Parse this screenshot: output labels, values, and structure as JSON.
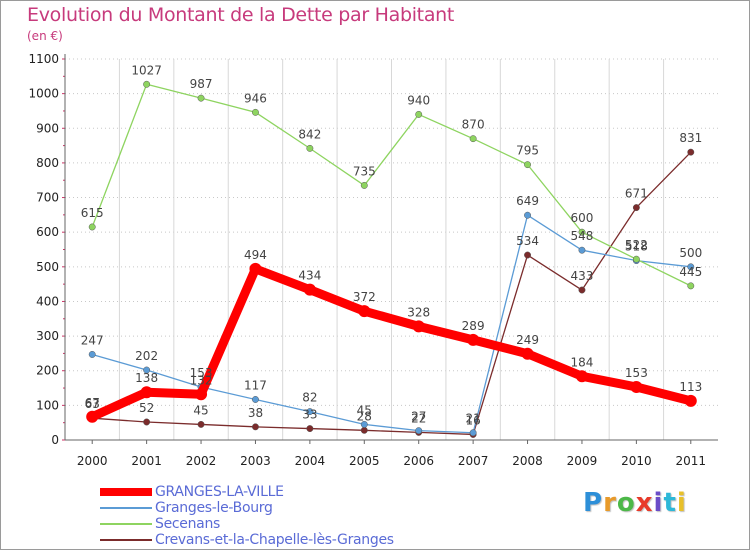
{
  "title": "Evolution du Montant de la Dette par Habitant",
  "unit": "(en €)",
  "logo": {
    "letters": [
      "P",
      "r",
      "o",
      "x",
      "i",
      "t",
      "i"
    ],
    "colors": [
      "#2d8fd8",
      "#e89a2a",
      "#4cb848",
      "#e83a2a",
      "#6a4cc8",
      "#2db8d8",
      "#e8c02a"
    ]
  },
  "chart_data": {
    "type": "line",
    "title": "Evolution du Montant de la Dette par Habitant",
    "ylabel": "(en €)",
    "xlabel": "",
    "x": [
      "2000",
      "2001",
      "2002",
      "2003",
      "2004",
      "2005",
      "2006",
      "2007",
      "2008",
      "2009",
      "2010",
      "2011"
    ],
    "ylim": [
      0,
      1100
    ],
    "yticks": [
      "0",
      "100",
      "200",
      "300",
      "400",
      "500",
      "600",
      "700",
      "800",
      "900",
      "1000",
      "1100"
    ],
    "grid": true,
    "legend_position": "bottom-left",
    "series": [
      {
        "name": "GRANGES-LA-VILLE",
        "color": "#ff0000",
        "values": [
          67,
          138,
          132,
          494,
          434,
          372,
          328,
          289,
          249,
          184,
          153,
          113
        ],
        "labels": [
          "67",
          "138",
          "132",
          "494",
          "434",
          "372",
          "328",
          "289",
          "249",
          "184",
          "153",
          "113"
        ]
      },
      {
        "name": "Granges-le-Bourg",
        "color": "#5b9bd5",
        "values": [
          247,
          202,
          153,
          117,
          82,
          45,
          27,
          21,
          649,
          548,
          518,
          500
        ],
        "labels": [
          "247",
          "202",
          "153",
          "117",
          "82",
          "45",
          "27",
          "21",
          "649",
          "548",
          "518",
          "500"
        ]
      },
      {
        "name": "Secenans",
        "color": "#8ed460",
        "values": [
          615,
          1027,
          987,
          946,
          842,
          735,
          940,
          870,
          795,
          600,
          522,
          445
        ],
        "labels": [
          "615",
          "1027",
          "987",
          "946",
          "842",
          "735",
          "940",
          "870",
          "795",
          "600",
          "522",
          "445"
        ]
      },
      {
        "name": "Crevans-et-la-Chapelle-lès-Granges",
        "color": "#7b2c2c",
        "values": [
          63,
          52,
          45,
          38,
          33,
          28,
          22,
          16,
          534,
          433,
          671,
          831
        ],
        "labels": [
          "63",
          "52",
          "45",
          "38",
          "33",
          "28",
          "22",
          "16",
          "534",
          "433",
          "671",
          "831"
        ]
      }
    ]
  }
}
